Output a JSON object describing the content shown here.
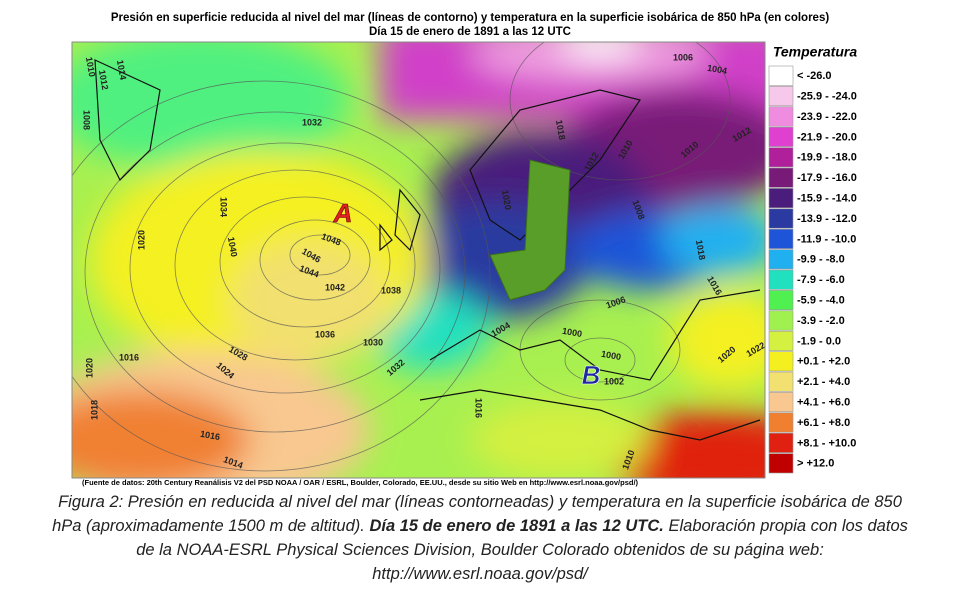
{
  "header": {
    "title": "Presión en superficie reducida al nivel del mar (líneas de contorno) y temperatura en la superficie isobárica de 850 hPa (en colores)",
    "subtitle": "Día 15 de enero de 1891 a las 12 UTC"
  },
  "map": {
    "high_label": "A",
    "low_label": "B",
    "contour_labels": [
      "1010",
      "1012",
      "1014",
      "1008",
      "1032",
      "1034",
      "1040",
      "1020",
      "1048",
      "1046",
      "1044",
      "1042",
      "1038",
      "1036",
      "1030",
      "1028",
      "1024",
      "1032",
      "1016",
      "1020",
      "1016",
      "1018",
      "1016",
      "1014",
      "1006",
      "1004",
      "1018",
      "1012",
      "1010",
      "1010",
      "1012",
      "1020",
      "1008",
      "1018",
      "1016",
      "1006",
      "1004",
      "1000",
      "1002",
      "1000",
      "1020",
      "1022",
      "1010"
    ]
  },
  "legend": {
    "title": "Temperatura",
    "items": [
      {
        "label": "< -26.0",
        "color": "#ffffff"
      },
      {
        "label": "-25.9 - -24.0",
        "color": "#f6c8ea"
      },
      {
        "label": "-23.9 - -22.0",
        "color": "#f08ce0"
      },
      {
        "label": "-21.9 - -20.0",
        "color": "#e040d0"
      },
      {
        "label": "-19.9 - -18.0",
        "color": "#b0209a"
      },
      {
        "label": "-17.9 - -16.0",
        "color": "#781a78"
      },
      {
        "label": "-15.9 - -14.0",
        "color": "#4a1c7c"
      },
      {
        "label": "-13.9 - -12.0",
        "color": "#2a3aa0"
      },
      {
        "label": "-11.9 - -10.0",
        "color": "#1e54d8"
      },
      {
        "label": "-9.9 - -8.0",
        "color": "#20b0f0"
      },
      {
        "label": "-7.9 - -6.0",
        "color": "#20e0c0"
      },
      {
        "label": "-5.9 - -4.0",
        "color": "#50f050"
      },
      {
        "label": "-3.9 - -2.0",
        "color": "#a0f050"
      },
      {
        "label": "-1.9 - 0.0",
        "color": "#d4f040"
      },
      {
        "label": "+0.1 - +2.0",
        "color": "#f4f020"
      },
      {
        "label": "+2.1 - +4.0",
        "color": "#f2e070"
      },
      {
        "label": "+4.1 - +6.0",
        "color": "#f8c890"
      },
      {
        "label": "+6.1 - +8.0",
        "color": "#f08030"
      },
      {
        "label": "+8.1 - +10.0",
        "color": "#e02010"
      },
      {
        "label": "> +12.0",
        "color": "#c00000"
      }
    ]
  },
  "source": "(Fuente de datos: 20th Century Reanálisis V2 del PSD NOAA / OAR / ESRL, Boulder, Colorado, EE.UU., desde su sitio Web en http://www.esrl.noaa.gov/psd/)",
  "caption": {
    "line1": "Figura 2: Presión en reducida al nivel del mar (líneas contorneadas) y temperatura en la superficie isobárica de 850",
    "line2a": "hPa (aproximadamente 1500 m de altitud).",
    "line2_bold": "Día 15 de enero de 1891 a las 12 UTC.",
    "line2b": "Elaboración propia con los datos",
    "line3": "de la NOAA-ESRL Physical Sciences Division, Boulder Colorado obtenidos de su página web:",
    "line4": "http://www.esrl.noaa.gov/psd/"
  }
}
